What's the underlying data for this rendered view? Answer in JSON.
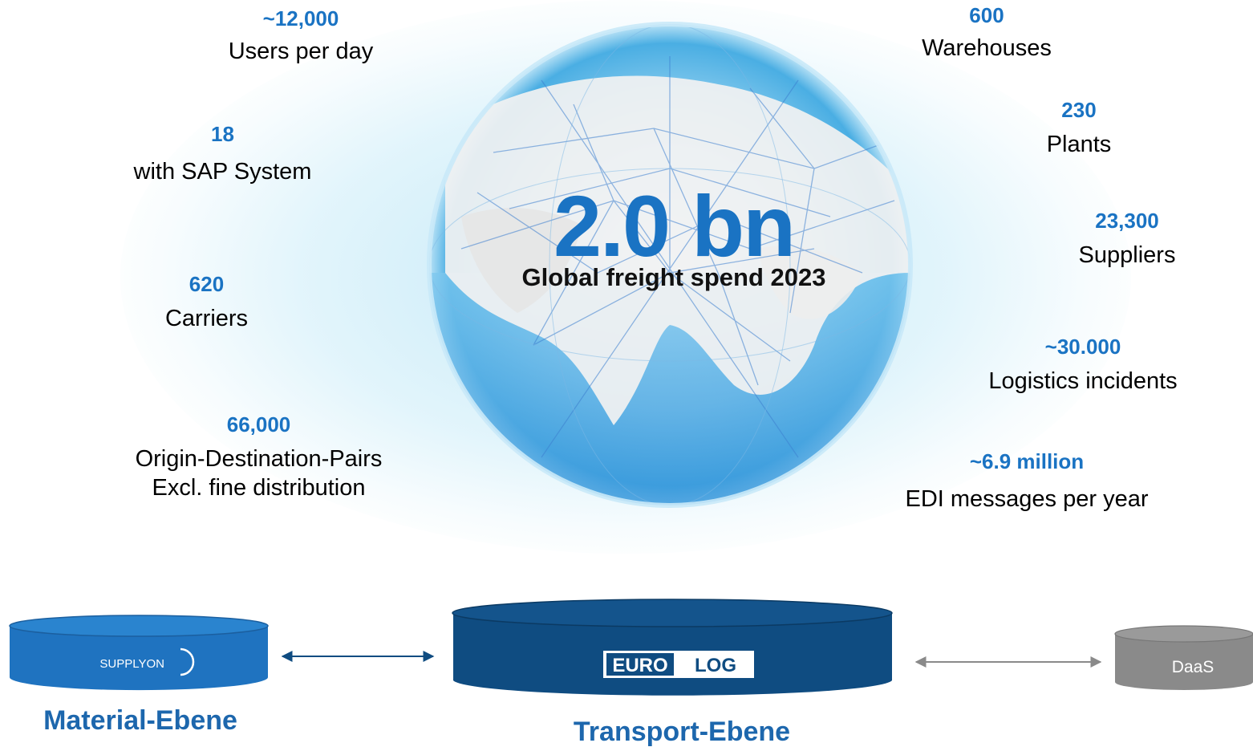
{
  "center": {
    "value": "2.0 bn",
    "label": "Global freight spend 2023"
  },
  "stats_left": [
    {
      "value": "~12,000",
      "label": "Users per day"
    },
    {
      "value": "18",
      "label": "with SAP System"
    },
    {
      "value": "620",
      "label": "Carriers"
    },
    {
      "value": "66,000",
      "label": "Origin-Destination-Pairs",
      "label2": "Excl. fine distribution"
    }
  ],
  "stats_right": [
    {
      "value": "600",
      "label": "Warehouses"
    },
    {
      "value": "230",
      "label": "Plants"
    },
    {
      "value": "23,300",
      "label": "Suppliers"
    },
    {
      "value": "~30.000",
      "label": "Logistics incidents"
    },
    {
      "value": "~6.9 million",
      "label": "EDI messages per year"
    }
  ],
  "layers": {
    "material": {
      "logo_text": "SUPPLYON",
      "title": "Material-Ebene"
    },
    "transport": {
      "logo_left": "EURO",
      "logo_right": "LOG",
      "title": "Transport-Ebene"
    },
    "daas": {
      "label": "DaaS"
    }
  },
  "colors": {
    "accent": "#1a73c3",
    "navy": "#0f4c81",
    "material_blue": "#1f73c0",
    "daas_gray": "#8a8a8a"
  }
}
